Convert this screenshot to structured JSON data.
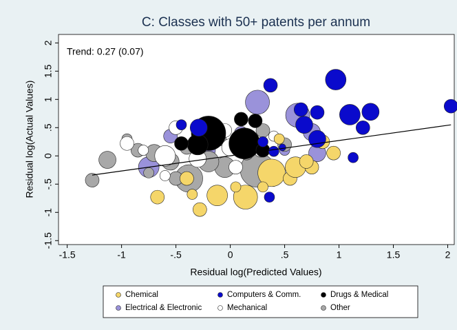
{
  "chart_data": {
    "type": "scatter",
    "title": "C: Classes with 50+ patents per annum",
    "annotation": "Trend: 0.27 (0.07)",
    "x_label": "Residual log(Predicted Values)",
    "y_label": "Residual log(Actual Values)",
    "xlim": [
      -1.58,
      2.06
    ],
    "ylim": [
      -1.57,
      2.15
    ],
    "xticks": [
      -1.5,
      -1,
      {
        "value": -0.5,
        "label": "-.5"
      },
      0,
      {
        "value": 0.5,
        "label": ".5"
      },
      1,
      1.5,
      2
    ],
    "yticks": [
      2,
      1.5,
      1,
      {
        "value": 0.5,
        "label": ".5"
      },
      0,
      {
        "value": -0.5,
        "label": "-.5"
      },
      -1,
      -1.5
    ],
    "grid": false,
    "trend": {
      "x": [
        -1.27,
        2.03
      ],
      "y": [
        -0.34,
        0.55
      ],
      "color": "#000000"
    },
    "series": [
      {
        "name": "Chemical",
        "color": "#f5d66a",
        "x": [
          -0.67,
          -0.28,
          -0.12,
          0.14,
          -0.35,
          0.38,
          0.55,
          0.6,
          0.75,
          0.95,
          0.85,
          0.3,
          0.05,
          -0.4,
          0.45,
          0.7
        ],
        "y": [
          -0.73,
          -0.95,
          -0.7,
          -0.73,
          -0.68,
          -0.3,
          -0.4,
          -0.2,
          -0.2,
          0.05,
          0.25,
          -0.55,
          -0.55,
          -0.4,
          0.3,
          -0.1
        ],
        "size": [
          2,
          2,
          3,
          3.5,
          1.5,
          4,
          2,
          3,
          2,
          2,
          2,
          1.5,
          1.5,
          2,
          1.5,
          2
        ]
      },
      {
        "name": "Computers & Comm.",
        "color": "#0a0acc",
        "x": [
          0.37,
          0.97,
          0.65,
          0.8,
          1.1,
          1.29,
          2.03,
          0.68,
          1.22,
          0.8,
          1.13,
          0.36,
          -0.45,
          -0.29,
          0.4,
          0.48,
          0.3
        ],
        "y": [
          1.25,
          1.35,
          0.82,
          0.77,
          0.73,
          0.78,
          0.88,
          0.55,
          0.5,
          0.3,
          -0.03,
          -0.73,
          0.55,
          0.5,
          0.08,
          0.15,
          0.25
        ],
        "size": [
          2,
          3,
          2,
          2,
          3,
          2.5,
          2,
          2.5,
          2,
          2.5,
          1.5,
          1.5,
          1.5,
          2.5,
          1.5,
          1,
          1.5
        ]
      },
      {
        "name": "Drugs & Medical",
        "color": "#000000",
        "x": [
          -0.2,
          0.13,
          0.1,
          0.23,
          0.3,
          -0.3,
          -0.45
        ],
        "y": [
          0.4,
          0.22,
          0.65,
          0.62,
          0.1,
          0.2,
          0.22
        ],
        "size": [
          5,
          4.5,
          2,
          2,
          2,
          3,
          2
        ]
      },
      {
        "name": "Electrical & Electronic",
        "color": "#9a92da",
        "x": [
          0.25,
          0.62,
          0.75,
          0.8,
          -0.75,
          -0.55,
          0.2,
          0.1,
          -0.2,
          0.5
        ],
        "y": [
          0.95,
          0.72,
          0.42,
          0.05,
          -0.2,
          0.35,
          -0.1,
          0.4,
          0.1,
          0.1
        ],
        "size": [
          3.5,
          3.5,
          2.5,
          2.5,
          3,
          2,
          2.5,
          2,
          2,
          1.5
        ]
      },
      {
        "name": "Mechanical",
        "color": "#ffffff",
        "x": [
          -0.95,
          -0.5,
          -0.6,
          -0.3,
          0,
          0.15,
          0.28,
          -0.05,
          0.4,
          -0.8,
          -0.6,
          0.05
        ],
        "y": [
          0.22,
          0.5,
          0,
          -0.05,
          0.15,
          0.3,
          0.1,
          0.45,
          0.35,
          0.1,
          -0.35,
          -0.2
        ],
        "size": [
          2,
          2,
          3,
          2.5,
          2.5,
          2,
          2,
          2,
          1.5,
          1.5,
          1.5,
          2
        ]
      },
      {
        "name": "Other",
        "color": "#a8a8a8",
        "x": [
          -1.27,
          -1.13,
          0.25,
          -0.38,
          -0.05,
          -0.55,
          -0.85,
          -0.7,
          -0.4,
          -0.2,
          -0.95,
          0.15,
          0.5,
          -0.1,
          -0.5,
          -0.75,
          0.3
        ],
        "y": [
          -0.43,
          -0.07,
          -0.25,
          -0.4,
          -0.2,
          -0.1,
          0.1,
          0.05,
          0.15,
          -0.1,
          0.3,
          0.05,
          0.2,
          0.3,
          -0.4,
          -0.3,
          0.45
        ],
        "size": [
          2,
          2.5,
          5,
          4,
          3,
          2.5,
          2,
          2.5,
          2,
          3,
          1.5,
          2,
          2,
          2,
          2,
          1.5,
          2
        ]
      }
    ]
  }
}
